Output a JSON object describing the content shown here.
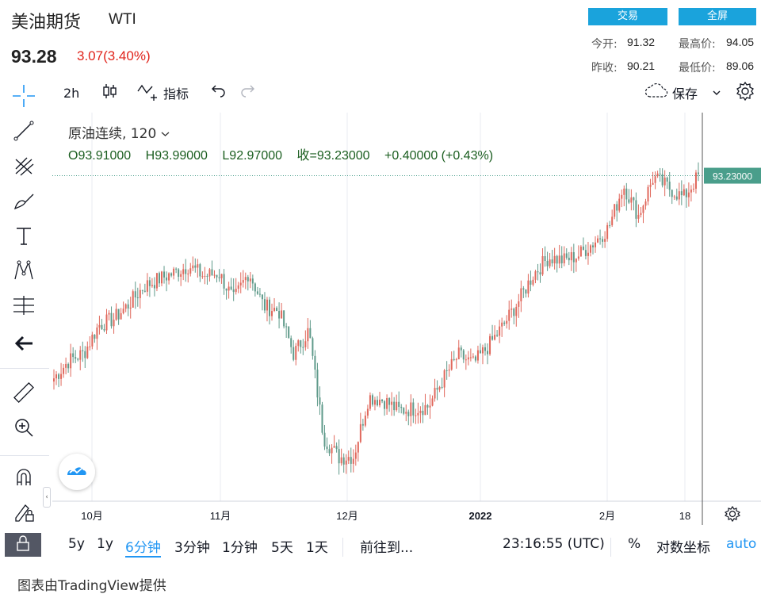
{
  "header": {
    "title": "美油期货",
    "symbol": "WTI",
    "price": "93.28",
    "change": "3.07(3.40%)",
    "trade_button": "交易",
    "fullscreen_button": "全屏",
    "stats": {
      "open_label": "今开:",
      "open_value": "91.32",
      "high_label": "最高价:",
      "high_value": "94.05",
      "prev_close_label": "昨收:",
      "prev_close_value": "90.21",
      "low_label": "最低价:",
      "low_value": "89.06"
    }
  },
  "toolbar": {
    "interval": "2h",
    "indicators_label": "指标",
    "save_label": "保存"
  },
  "legend": {
    "title": "原油连续, 120",
    "open": "O93.91000",
    "high": "H93.99000",
    "low": "L92.97000",
    "close": "收=93.23000",
    "change": "+0.40000 (+0.43%)"
  },
  "price_tag": "93.23000",
  "bottom_bar": {
    "ranges": [
      "5y",
      "1y",
      "6分钟",
      "3分钟",
      "1分钟",
      "5天",
      "1天"
    ],
    "active_range": "6分钟",
    "goto_label": "前往到...",
    "time": "23:16:55 (UTC)",
    "percent_label": "%",
    "log_label": "对数坐标",
    "auto_label": "auto"
  },
  "credit": "图表由TradingView提供",
  "colors": {
    "up": "#e0685c",
    "down": "#5f9a8a",
    "accent": "#1aa3dc",
    "price_tag": "#4a9e8b",
    "auto": "#2196f3"
  },
  "icons": [
    "crosshair-icon",
    "trendline-icon",
    "fib-icon",
    "brush-icon",
    "text-icon",
    "pattern-icon",
    "measure-icon",
    "back-arrow-icon",
    "ruler-icon",
    "zoom-icon",
    "magnet-icon",
    "lock-pencil-icon",
    "lock-icon",
    "candle-icon",
    "indicator-icon",
    "undo-icon",
    "redo-icon",
    "cloud-icon",
    "chevron-down-icon",
    "gear-icon",
    "settings-icon",
    "tradingview-logo-icon"
  ],
  "chart_data": {
    "type": "candlestick",
    "x_ticks": [
      "10月",
      "11月",
      "12月",
      "2022",
      "2月",
      "18"
    ],
    "last_price": 93.23,
    "series": [
      {
        "x": "09-24",
        "y": 73.8
      },
      {
        "x": "09-28",
        "y": 75.5
      },
      {
        "x": "10-01",
        "y": 76.2
      },
      {
        "x": "10-05",
        "y": 78.9
      },
      {
        "x": "10-08",
        "y": 79.5
      },
      {
        "x": "10-12",
        "y": 80.9
      },
      {
        "x": "10-15",
        "y": 82.6
      },
      {
        "x": "10-19",
        "y": 83.3
      },
      {
        "x": "10-22",
        "y": 83.9
      },
      {
        "x": "10-26",
        "y": 84.6
      },
      {
        "x": "10-29",
        "y": 83.6
      },
      {
        "x": "11-02",
        "y": 83.9
      },
      {
        "x": "11-05",
        "y": 81.3
      },
      {
        "x": "11-09",
        "y": 84.0
      },
      {
        "x": "11-12",
        "y": 80.7
      },
      {
        "x": "11-16",
        "y": 80.3
      },
      {
        "x": "11-19",
        "y": 76.1
      },
      {
        "x": "11-23",
        "y": 78.4
      },
      {
        "x": "11-26",
        "y": 68.1
      },
      {
        "x": "11-30",
        "y": 66.2
      },
      {
        "x": "12-03",
        "y": 66.3
      },
      {
        "x": "12-07",
        "y": 72.0
      },
      {
        "x": "12-10",
        "y": 71.7
      },
      {
        "x": "12-14",
        "y": 70.7
      },
      {
        "x": "12-17",
        "y": 70.9
      },
      {
        "x": "12-21",
        "y": 71.1
      },
      {
        "x": "12-24",
        "y": 73.8
      },
      {
        "x": "12-28",
        "y": 76.0
      },
      {
        "x": "12-31",
        "y": 75.2
      },
      {
        "x": "01-04",
        "y": 76.9
      },
      {
        "x": "01-07",
        "y": 78.9
      },
      {
        "x": "01-11",
        "y": 81.2
      },
      {
        "x": "01-14",
        "y": 83.8
      },
      {
        "x": "01-18",
        "y": 85.4
      },
      {
        "x": "01-21",
        "y": 85.1
      },
      {
        "x": "01-25",
        "y": 85.6
      },
      {
        "x": "01-28",
        "y": 86.8
      },
      {
        "x": "02-01",
        "y": 88.2
      },
      {
        "x": "02-04",
        "y": 92.3
      },
      {
        "x": "02-08",
        "y": 89.4
      },
      {
        "x": "02-11",
        "y": 93.1
      },
      {
        "x": "02-15",
        "y": 92.1
      },
      {
        "x": "02-18",
        "y": 91.1
      },
      {
        "x": "02-20",
        "y": 93.2
      }
    ]
  }
}
